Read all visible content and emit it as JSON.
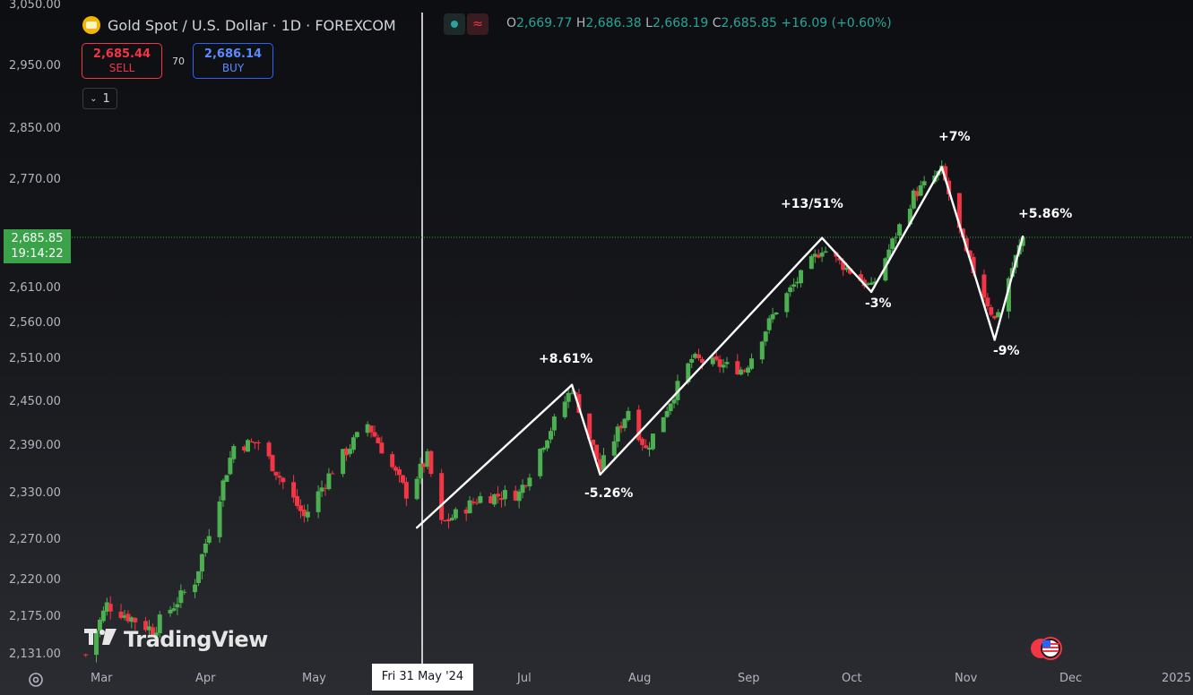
{
  "header": {
    "symbol_title": "Gold Spot / U.S. Dollar · 1D · FOREXCOM",
    "ohlc": {
      "open_label": "O",
      "open": "2,669.77",
      "high_label": "H",
      "high": "2,686.38",
      "low_label": "L",
      "low": "2,668.19",
      "close_label": "C",
      "close": "2,685.85",
      "change": "+16.09 (+0.60%)"
    }
  },
  "trade": {
    "sell_price": "2,685.44",
    "sell_label": "SELL",
    "spread": "70",
    "buy_price": "2,686.14",
    "buy_label": "BUY"
  },
  "collapse_count": "1",
  "price_tag": {
    "price": "2,685.85",
    "countdown": "19:14:22"
  },
  "crosshair_date": "Fri 31 May '24",
  "y_axis_labels": [
    "3,050.00",
    "2,950.00",
    "2,850.00",
    "2,770.00",
    "2,610.00",
    "2,560.00",
    "2,510.00",
    "2,450.00",
    "2,390.00",
    "2,330.00",
    "2,270.00",
    "2,220.00",
    "2,175.00",
    "2,131.00"
  ],
  "x_axis_labels": [
    "Mar",
    "Apr",
    "May",
    "Jul",
    "Aug",
    "Sep",
    "Oct",
    "Nov",
    "Dec",
    "2025"
  ],
  "annotations": [
    "+8.61%",
    "-5.26%",
    "+13/51%",
    "-3%",
    "+7%",
    "-9%",
    "+5.86%"
  ],
  "logo_text": "TradingView",
  "colors": {
    "up": "#26a69a",
    "up_candle": "#4caf50",
    "down": "#f23645",
    "price_line": "#3aa248"
  },
  "chart_data": {
    "type": "candlestick",
    "title": "Gold Spot / U.S. Dollar · 1D · FOREXCOM",
    "ylim": [
      2131,
      3050
    ],
    "xlabel": "",
    "ylabel": "",
    "x_range": [
      "2024-02-26",
      "2025-01-06"
    ],
    "last_close": 2685.85,
    "grid": false,
    "zigzag_points": [
      {
        "date": "2024-06-03",
        "value": 2286
      },
      {
        "date": "2024-07-17",
        "value": 2474
      },
      {
        "date": "2024-07-25",
        "value": 2354
      },
      {
        "date": "2024-09-26",
        "value": 2685
      },
      {
        "date": "2024-10-10",
        "value": 2605
      },
      {
        "date": "2024-10-30",
        "value": 2790
      },
      {
        "date": "2024-11-14",
        "value": 2537
      },
      {
        "date": "2024-11-22",
        "value": 2687
      }
    ],
    "anchors": [
      {
        "date": "2024-03-01",
        "value": 2131
      },
      {
        "date": "2024-03-07",
        "value": 2190
      },
      {
        "date": "2024-03-20",
        "value": 2160
      },
      {
        "date": "2024-04-01",
        "value": 2220
      },
      {
        "date": "2024-04-12",
        "value": 2390
      },
      {
        "date": "2024-04-19",
        "value": 2395
      },
      {
        "date": "2024-05-02",
        "value": 2300
      },
      {
        "date": "2024-05-10",
        "value": 2360
      },
      {
        "date": "2024-05-20",
        "value": 2420
      },
      {
        "date": "2024-05-31",
        "value": 2330
      },
      {
        "date": "2024-06-06",
        "value": 2375
      },
      {
        "date": "2024-06-10",
        "value": 2290
      },
      {
        "date": "2024-06-21",
        "value": 2325
      },
      {
        "date": "2024-07-02",
        "value": 2330
      },
      {
        "date": "2024-07-17",
        "value": 2470
      },
      {
        "date": "2024-07-25",
        "value": 2360
      },
      {
        "date": "2024-08-02",
        "value": 2440
      },
      {
        "date": "2024-08-07",
        "value": 2385
      },
      {
        "date": "2024-08-20",
        "value": 2510
      },
      {
        "date": "2024-09-04",
        "value": 2495
      },
      {
        "date": "2024-09-13",
        "value": 2580
      },
      {
        "date": "2024-09-26",
        "value": 2670
      },
      {
        "date": "2024-10-10",
        "value": 2610
      },
      {
        "date": "2024-10-22",
        "value": 2748
      },
      {
        "date": "2024-10-30",
        "value": 2785
      },
      {
        "date": "2024-11-06",
        "value": 2660
      },
      {
        "date": "2024-11-14",
        "value": 2565
      },
      {
        "date": "2024-11-22",
        "value": 2686
      }
    ]
  }
}
